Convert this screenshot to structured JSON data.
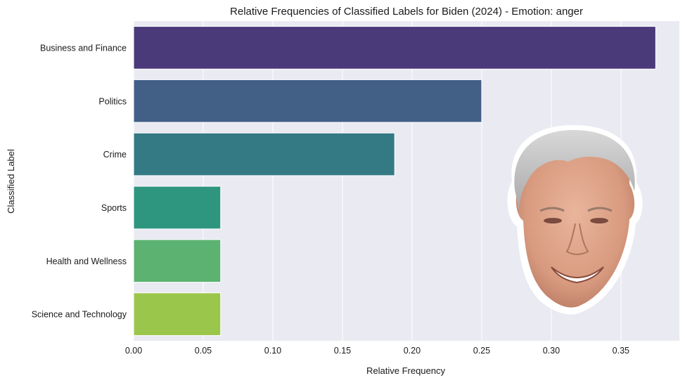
{
  "chart_data": {
    "type": "bar",
    "orientation": "horizontal",
    "title": "Relative Frequencies of Classified Labels for Biden (2024) - Emotion: anger",
    "xlabel": "Relative Frequency",
    "ylabel": "Classified Label",
    "categories": [
      "Business and Finance",
      "Politics",
      "Crime",
      "Sports",
      "Health and Wellness",
      "Science and Technology"
    ],
    "values": [
      0.375,
      0.25,
      0.1875,
      0.0625,
      0.0625,
      0.0625
    ],
    "bar_colors": [
      "#4b3a79",
      "#425f86",
      "#347a85",
      "#2e957f",
      "#5cb271",
      "#9bc64c"
    ],
    "xlim": [
      0,
      0.392
    ],
    "xticks": [
      "0.00",
      "0.05",
      "0.10",
      "0.15",
      "0.20",
      "0.25",
      "0.30",
      "0.35"
    ],
    "grid": true,
    "background": "#eaeaf2",
    "decoration": "face-photo-cutout"
  }
}
